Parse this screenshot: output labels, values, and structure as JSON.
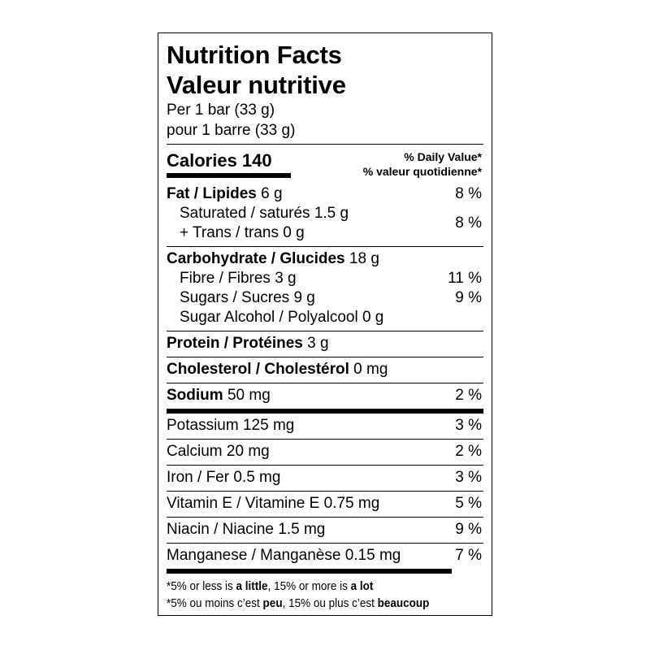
{
  "title_en": "Nutrition Facts",
  "title_fr": "Valeur nutritive",
  "serving_en": "Per 1 bar (33 g)",
  "serving_fr": "pour 1 barre (33 g)",
  "calories": "Calories 140",
  "dv_header_en": "% Daily Value*",
  "dv_header_fr": "% valeur quotidienne*",
  "sections": [
    {
      "border": "none",
      "rows": [
        {
          "bold": "Fat / Lipides",
          "amount": " 6 g",
          "dv": "8 %"
        },
        {
          "group": [
            "Saturated / saturés 1.5 g",
            "+ Trans / trans 0 g"
          ],
          "dv": "8 %"
        }
      ]
    },
    {
      "border": "thin",
      "rows": [
        {
          "bold": "Carbohydrate / Glucides",
          "amount": " 18 g",
          "dv": ""
        },
        {
          "sub": true,
          "amount": "Fibre / Fibres 3 g",
          "dv": "11 %"
        },
        {
          "sub": true,
          "amount": "Sugars / Sucres 9 g",
          "dv": "9 %"
        },
        {
          "sub": true,
          "amount": "Sugar Alcohol / Polyalcool 0 g",
          "dv": ""
        }
      ]
    },
    {
      "border": "thin",
      "rows": [
        {
          "bold": "Protein / Protéines",
          "amount": " 3 g",
          "dv": ""
        }
      ]
    },
    {
      "border": "thin",
      "rows": [
        {
          "bold": "Cholesterol / Cholestérol",
          "amount": " 0 mg",
          "dv": ""
        }
      ]
    },
    {
      "border": "thin",
      "rows": [
        {
          "bold": "Sodium",
          "amount": " 50 mg",
          "dv": "2 %"
        }
      ]
    },
    {
      "border": "thick",
      "rows": [
        {
          "amount": "Potassium 125 mg",
          "dv": "3 %"
        }
      ]
    },
    {
      "border": "thin",
      "rows": [
        {
          "amount": "Calcium 20 mg",
          "dv": "2 %"
        }
      ]
    },
    {
      "border": "thin",
      "rows": [
        {
          "amount": "Iron / Fer 0.5 mg",
          "dv": "3 %"
        }
      ]
    },
    {
      "border": "thin",
      "rows": [
        {
          "amount": "Vitamin E / Vitamine E 0.75 mg",
          "dv": "5 %"
        }
      ]
    },
    {
      "border": "thin",
      "rows": [
        {
          "amount": "Niacin / Niacine 1.5 mg",
          "dv": "9 %"
        }
      ]
    },
    {
      "border": "thin",
      "rows": [
        {
          "amount": "Manganese / Manganèse 0.15 mg",
          "dv": "7 %"
        }
      ]
    }
  ],
  "footnote_en": {
    "a": "*5% or less is ",
    "b": "a little",
    "c": ", 15% or more is ",
    "d": "a lot"
  },
  "footnote_fr": {
    "a": "*5% ou moins c’est ",
    "b": "peu",
    "c": ", 15% ou plus c’est ",
    "d": "beaucoup"
  }
}
